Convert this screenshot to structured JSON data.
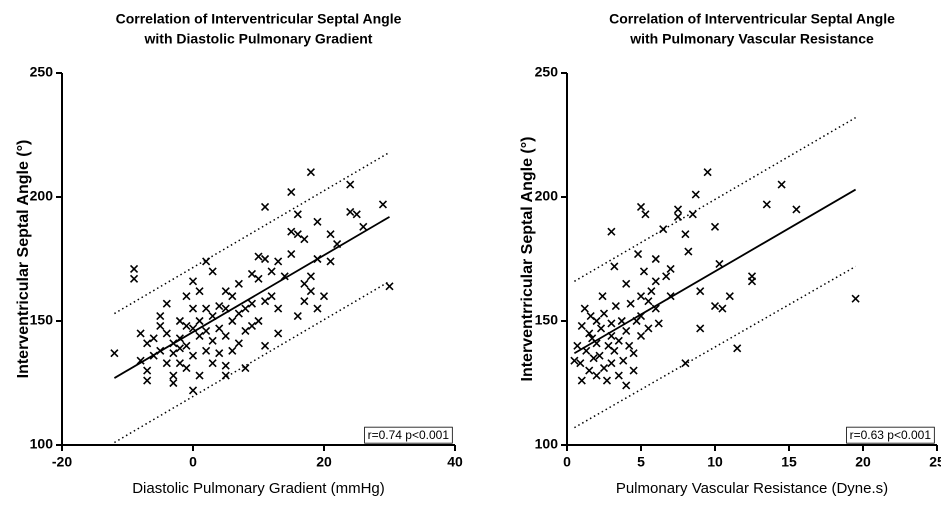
{
  "chart_data": [
    {
      "type": "scatter",
      "title": [
        "Correlation of Interventricular Septal Angle",
        "with Diastolic Pulmonary Gradient"
      ],
      "x_label": "Diastolic Pulmonary Gradient (mmHg)",
      "y_label": "Interventricular Septal Angle (°)",
      "annotation": "r=0.74 p<0.001",
      "color": "#000000",
      "xlim": [
        -20,
        40
      ],
      "xticks": [
        -20,
        0,
        20,
        40
      ],
      "ylim": [
        100,
        250
      ],
      "yticks": [
        100,
        150,
        200,
        250
      ],
      "x": [
        -12,
        -9,
        -9,
        -8,
        -8,
        -7,
        -7,
        -7,
        -6,
        -6,
        -5,
        -5,
        -5,
        -4,
        -4,
        -4,
        -3,
        -3,
        -3,
        -3,
        -2,
        -2,
        -2,
        -2,
        -1,
        -1,
        -1,
        -1,
        0,
        0,
        0,
        0,
        0,
        1,
        1,
        1,
        1,
        2,
        2,
        2,
        2,
        3,
        3,
        3,
        3,
        4,
        4,
        4,
        5,
        5,
        5,
        5,
        5,
        6,
        6,
        6,
        7,
        7,
        7,
        8,
        8,
        8,
        9,
        9,
        9,
        10,
        10,
        10,
        11,
        11,
        11,
        11,
        12,
        12,
        13,
        13,
        14,
        15,
        15,
        15,
        16,
        16,
        16,
        17,
        17,
        18,
        18,
        19,
        19,
        19,
        20,
        21,
        21,
        22,
        24,
        24,
        25,
        26,
        29,
        30,
        18,
        13,
        17
      ],
      "values": [
        137,
        171,
        167,
        145,
        134,
        141,
        130,
        126,
        136,
        143,
        138,
        148,
        152,
        157,
        145,
        133,
        141,
        137,
        128,
        125,
        150,
        143,
        139,
        133,
        160,
        148,
        140,
        131,
        166,
        155,
        147,
        136,
        122,
        162,
        150,
        144,
        128,
        174,
        155,
        146,
        138,
        170,
        152,
        142,
        133,
        156,
        147,
        137,
        162,
        155,
        144,
        132,
        128,
        160,
        150,
        138,
        165,
        153,
        141,
        155,
        146,
        131,
        169,
        157,
        148,
        176,
        167,
        150,
        196,
        175,
        158,
        140,
        170,
        160,
        155,
        145,
        168,
        202,
        186,
        177,
        193,
        185,
        152,
        183,
        165,
        210,
        168,
        155,
        175,
        190,
        160,
        185,
        174,
        181,
        194,
        205,
        193,
        188,
        197,
        164,
        162,
        174,
        158
      ],
      "lines": [
        {
          "style": "solid",
          "x": [
            -12,
            30
          ],
          "y": [
            127,
            192
          ]
        },
        {
          "style": "dotted",
          "x": [
            -12,
            30
          ],
          "y": [
            153,
            218
          ]
        },
        {
          "style": "dotted",
          "x": [
            -12,
            30
          ],
          "y": [
            101,
            166
          ]
        }
      ]
    },
    {
      "type": "scatter",
      "title": [
        "Correlation of Interventricular Septal Angle",
        "with Pulmonary Vascular Resistance"
      ],
      "x_label": "Pulmonary Vascular Resistance (Dyne.s)",
      "y_label": "Interventrricular Septal Angle (°)",
      "annotation": "r=0.63 p<0.001",
      "color": "#000000",
      "xlim": [
        0,
        25
      ],
      "xticks": [
        0,
        5,
        10,
        15,
        20,
        25
      ],
      "ylim": [
        100,
        250
      ],
      "yticks": [
        100,
        150,
        200,
        250
      ],
      "x": [
        0.5,
        0.7,
        0.9,
        1,
        1,
        1.2,
        1.3,
        1.5,
        1.5,
        1.7,
        1.8,
        2,
        2,
        2,
        2.2,
        2.3,
        2.5,
        2.5,
        2.7,
        2.8,
        3,
        3,
        3,
        3,
        3.2,
        3.3,
        3.5,
        3.5,
        3.7,
        3.8,
        4,
        4,
        4,
        4.2,
        4.3,
        4.5,
        4.5,
        4.7,
        5,
        5,
        5,
        5,
        5.2,
        5.3,
        5.5,
        5.5,
        5.7,
        6,
        6,
        6,
        6.5,
        6.7,
        7,
        7,
        7.5,
        7.5,
        8,
        8,
        8.5,
        8.7,
        9,
        9,
        9.5,
        10,
        10,
        10.3,
        10.5,
        11,
        11.5,
        12.5,
        12.5,
        13.5,
        14.5,
        15.5,
        19.5,
        3.2,
        2.4,
        1.6,
        4.8,
        6.2,
        8.2
      ],
      "values": [
        134,
        140,
        133,
        148,
        126,
        155,
        138,
        145,
        130,
        143,
        135,
        150,
        128,
        141,
        136,
        147,
        131,
        153,
        126,
        140,
        186,
        144,
        149,
        133,
        138,
        156,
        128,
        142,
        150,
        134,
        165,
        146,
        124,
        140,
        157,
        137,
        130,
        150,
        196,
        160,
        152,
        144,
        170,
        193,
        158,
        147,
        162,
        175,
        155,
        166,
        187,
        168,
        171,
        160,
        192,
        195,
        133,
        185,
        193,
        201,
        147,
        162,
        210,
        156,
        188,
        173,
        155,
        160,
        139,
        168,
        166,
        197,
        205,
        195,
        159,
        172,
        160,
        152,
        177,
        149,
        178
      ],
      "lines": [
        {
          "style": "solid",
          "x": [
            0.5,
            19.5
          ],
          "y": [
            137,
            203
          ]
        },
        {
          "style": "dotted",
          "x": [
            0.5,
            19.5
          ],
          "y": [
            166,
            232
          ]
        },
        {
          "style": "dotted",
          "x": [
            0.5,
            19.5
          ],
          "y": [
            107,
            172
          ]
        }
      ]
    }
  ]
}
